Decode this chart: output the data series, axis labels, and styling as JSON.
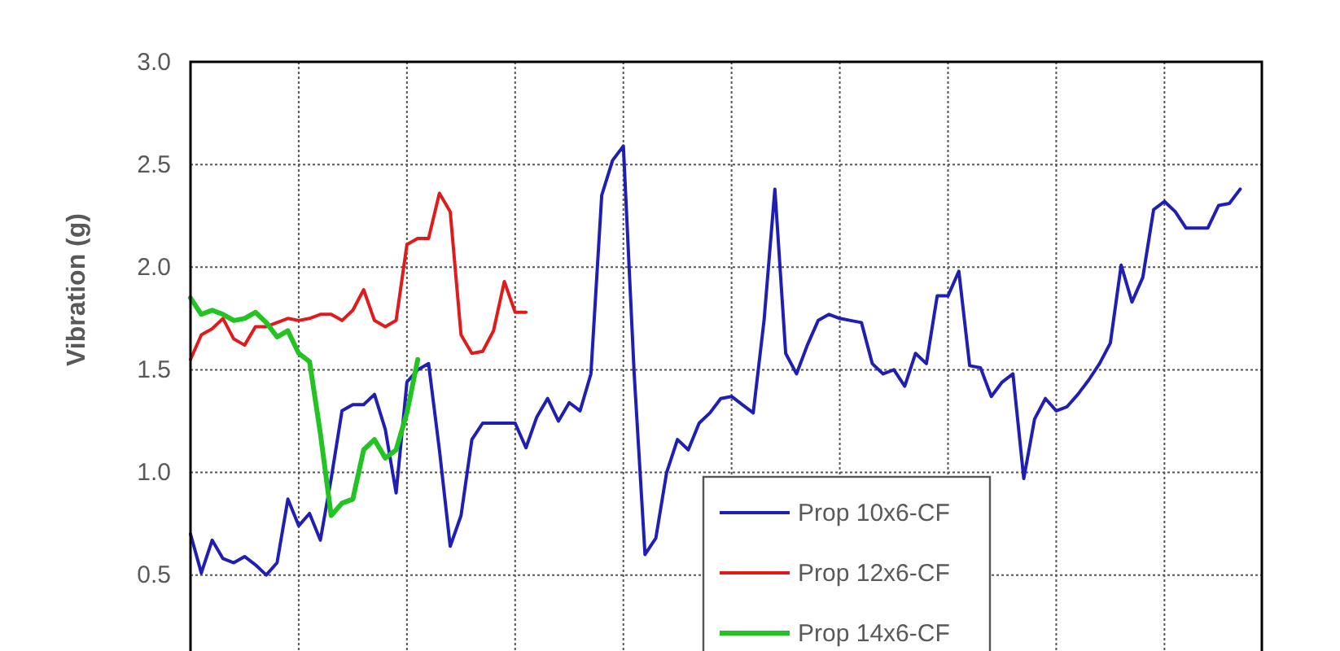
{
  "chart_data": {
    "type": "line",
    "ylabel": "Vibration (g)",
    "categories": [
      null,
      null,
      null,
      null,
      null,
      null,
      null,
      null,
      null,
      null,
      null,
      null,
      null,
      null,
      null,
      null,
      null,
      null,
      null,
      null,
      null,
      null,
      null,
      null,
      null,
      null,
      null,
      null,
      null,
      null,
      null,
      null,
      null,
      null,
      null,
      null,
      null,
      null,
      null,
      null,
      null,
      null,
      null,
      null,
      null,
      null,
      null,
      null,
      null,
      null,
      null,
      null,
      null,
      null,
      null,
      null,
      null,
      null,
      null,
      null,
      null,
      null,
      null,
      null,
      null,
      null,
      null,
      null,
      null,
      null,
      null,
      null,
      null,
      null,
      null,
      null,
      null,
      null,
      null,
      null,
      null,
      null,
      null,
      null,
      null,
      null,
      null,
      null,
      null,
      null,
      null,
      null,
      null,
      null,
      null,
      null,
      null,
      null,
      null,
      null
    ],
    "series": [
      {
        "name": "Prop 10x6-CF",
        "color": "#1f1fb4",
        "values": [
          0.7,
          0.51,
          0.67,
          0.58,
          0.56,
          0.59,
          0.55,
          0.5,
          0.56,
          0.87,
          0.74,
          0.8,
          0.67,
          0.97,
          1.3,
          1.33,
          1.33,
          1.38,
          1.21,
          0.9,
          1.44,
          1.5,
          1.53,
          1.11,
          0.64,
          0.79,
          1.16,
          1.24,
          1.24,
          1.24,
          1.24,
          1.12,
          1.27,
          1.36,
          1.25,
          1.34,
          1.3,
          1.48,
          2.35,
          2.52,
          2.59,
          1.48,
          0.6,
          0.68,
          1.0,
          1.16,
          1.11,
          1.24,
          1.29,
          1.36,
          1.37,
          1.33,
          1.29,
          1.74,
          2.38,
          1.58,
          1.48,
          1.62,
          1.74,
          1.77,
          1.75,
          1.74,
          1.73,
          1.53,
          1.48,
          1.5,
          1.42,
          1.58,
          1.53,
          1.86,
          1.86,
          1.98,
          1.52,
          1.51,
          1.37,
          1.44,
          1.48,
          0.97,
          1.26,
          1.36,
          1.3,
          1.32,
          1.38,
          1.45,
          1.53,
          1.63,
          2.01,
          1.83,
          1.95,
          2.28,
          2.32,
          2.27,
          2.19,
          2.19,
          2.19,
          2.3,
          2.31,
          2.38,
          null,
          null
        ]
      },
      {
        "name": "Prop 12x6-CF",
        "color": "#e01b1b",
        "values": [
          1.55,
          1.67,
          1.7,
          1.75,
          1.65,
          1.62,
          1.71,
          1.71,
          1.73,
          1.75,
          1.74,
          1.75,
          1.77,
          1.77,
          1.74,
          1.79,
          1.89,
          1.74,
          1.71,
          1.74,
          2.11,
          2.14,
          2.14,
          2.36,
          2.27,
          1.67,
          1.58,
          1.59,
          1.69,
          1.93,
          1.78,
          1.78,
          null,
          null,
          null,
          null,
          null,
          null,
          null,
          null,
          null,
          null,
          null,
          null,
          null,
          null,
          null,
          null,
          null,
          null,
          null,
          null,
          null,
          null,
          null,
          null,
          null,
          null,
          null,
          null,
          null,
          null,
          null,
          null,
          null,
          null,
          null,
          null,
          null,
          null,
          null,
          null,
          null,
          null,
          null,
          null,
          null,
          null,
          null,
          null,
          null,
          null,
          null,
          null,
          null,
          null,
          null,
          null,
          null,
          null,
          null,
          null,
          null,
          null,
          null,
          null,
          null,
          null,
          null,
          null
        ]
      },
      {
        "name": "Prop 14x6-CF",
        "color": "#22c322",
        "values": [
          1.85,
          1.77,
          1.79,
          1.77,
          1.74,
          1.75,
          1.78,
          1.73,
          1.66,
          1.69,
          1.58,
          1.54,
          1.19,
          0.79,
          0.85,
          0.87,
          1.11,
          1.16,
          1.07,
          1.11,
          1.29,
          1.55,
          null,
          null,
          null,
          null,
          null,
          null,
          null,
          null,
          null,
          null,
          null,
          null,
          null,
          null,
          null,
          null,
          null,
          null,
          null,
          null,
          null,
          null,
          null,
          null,
          null,
          null,
          null,
          null,
          null,
          null,
          null,
          null,
          null,
          null,
          null,
          null,
          null,
          null,
          null,
          null,
          null,
          null,
          null,
          null,
          null,
          null,
          null,
          null,
          null,
          null,
          null,
          null,
          null,
          null,
          null,
          null,
          null,
          null,
          null,
          null,
          null,
          null,
          null,
          null,
          null,
          null,
          null,
          null,
          null,
          null,
          null,
          null,
          null,
          null,
          null,
          null,
          null,
          null
        ]
      }
    ],
    "ylim": [
      0.13,
      3.0
    ],
    "yticks": [
      {
        "value": 0.5,
        "label": "0.5"
      },
      {
        "value": 1.0,
        "label": "1.0"
      },
      {
        "value": 1.5,
        "label": "1.5"
      },
      {
        "value": 2.0,
        "label": "2.0"
      },
      {
        "value": 2.5,
        "label": "2.5"
      },
      {
        "value": 3.0,
        "label": "3.0"
      }
    ],
    "grid": true,
    "legend": "bottom",
    "tick_labels": "y",
    "marker": "none",
    "line_style": "solid"
  }
}
